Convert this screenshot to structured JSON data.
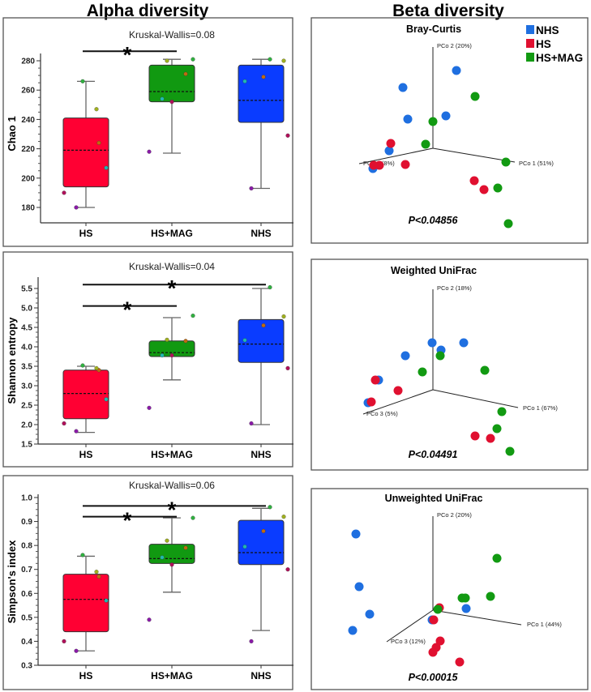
{
  "headers": {
    "alpha": "Alpha diversity",
    "beta": "Beta diversity"
  },
  "colors": {
    "HS": "#ff0033",
    "HS+MAG": "#119911",
    "NHS": "#0a3cff",
    "pcoa_NHS": "#1f6fe0",
    "pcoa_HS": "#e01030",
    "pcoa_HSMAG": "#129a12"
  },
  "chart_data": [
    {
      "type": "box",
      "ylabel": "Chao 1",
      "annotation": "Kruskal-Wallis=0.08",
      "categories": [
        "HS",
        "HS+MAG",
        "NHS"
      ],
      "yticks": [
        "180",
        "200",
        "220",
        "240",
        "260",
        "280"
      ],
      "ylim": [
        180,
        280
      ],
      "boxes": [
        {
          "q1": 194,
          "q3": 241,
          "median": 219,
          "min": 180,
          "max": 266,
          "points": [
            180,
            190,
            207,
            224,
            247,
            266
          ]
        },
        {
          "q1": 252,
          "q3": 277,
          "median": 259,
          "min": 217,
          "max": 281,
          "points": [
            218,
            252,
            254,
            271,
            280,
            281
          ]
        },
        {
          "q1": 238,
          "q3": 277,
          "median": 253,
          "min": 193,
          "max": 281,
          "points": [
            193,
            229,
            266,
            269,
            280,
            281
          ]
        }
      ],
      "significance": [
        {
          "from": 0,
          "to": 1,
          "level": 286.5,
          "mark": "*"
        }
      ]
    },
    {
      "type": "box",
      "ylabel": "Shannon entropy",
      "annotation": "Kruskal-Wallis=0.04",
      "categories": [
        "HS",
        "HS+MAG",
        "NHS"
      ],
      "yticks": [
        "1.5",
        "2.0",
        "2.5",
        "3.0",
        "3.5",
        "4.0",
        "4.5",
        "5.0",
        "5.5"
      ],
      "ylim": [
        1.5,
        5.5
      ],
      "boxes": [
        {
          "q1": 2.15,
          "q3": 3.4,
          "median": 2.8,
          "min": 1.8,
          "max": 3.5,
          "points": [
            1.83,
            2.03,
            2.65,
            3.4,
            3.45,
            3.52
          ]
        },
        {
          "q1": 3.75,
          "q3": 4.15,
          "median": 3.85,
          "min": 3.15,
          "max": 4.75,
          "points": [
            2.43,
            3.78,
            3.78,
            4.15,
            4.18,
            4.8
          ]
        },
        {
          "q1": 3.6,
          "q3": 4.7,
          "median": 4.07,
          "min": 2.0,
          "max": 5.5,
          "points": [
            2.03,
            3.45,
            4.17,
            4.55,
            4.78,
            5.53
          ]
        }
      ],
      "significance": [
        {
          "from": 0,
          "to": 2,
          "level": 5.6,
          "mark": "*"
        },
        {
          "from": 0,
          "to": 1,
          "level": 5.05,
          "mark": "*"
        }
      ]
    },
    {
      "type": "box",
      "ylabel": "Simpson's index",
      "annotation": "Kruskal-Wallis=0.06",
      "categories": [
        "HS",
        "HS+MAG",
        "NHS"
      ],
      "yticks": [
        "0.3",
        "0.4",
        "0.5",
        "0.6",
        "0.7",
        "0.8",
        "0.9",
        "1.0"
      ],
      "ylim": [
        0.3,
        1.0
      ],
      "boxes": [
        {
          "q1": 0.44,
          "q3": 0.68,
          "median": 0.575,
          "min": 0.36,
          "max": 0.755,
          "points": [
            0.36,
            0.4,
            0.57,
            0.67,
            0.69,
            0.76
          ]
        },
        {
          "q1": 0.725,
          "q3": 0.805,
          "median": 0.745,
          "min": 0.605,
          "max": 0.915,
          "points": [
            0.49,
            0.72,
            0.75,
            0.79,
            0.82,
            0.915
          ]
        },
        {
          "q1": 0.72,
          "q3": 0.905,
          "median": 0.77,
          "min": 0.445,
          "max": 0.955,
          "points": [
            0.4,
            0.7,
            0.795,
            0.86,
            0.92,
            0.96
          ]
        }
      ],
      "significance": [
        {
          "from": 0,
          "to": 2,
          "level": 0.965,
          "mark": "*"
        },
        {
          "from": 0,
          "to": 1,
          "level": 0.92,
          "mark": "*"
        }
      ]
    },
    {
      "type": "scatter3d",
      "title": "Bray-Curtis",
      "pvalue": "P<0.04856",
      "axes": {
        "pc1": "PCo 1 (51%)",
        "pc2": "PCo 2 (20%)",
        "pc3": "PCo 3 (8%)"
      },
      "legend": [
        "NHS",
        "HS",
        "HS+MAG"
      ],
      "series": [
        {
          "name": "NHS",
          "points": [
            [
              2.9,
              9.6
            ],
            [
              -3.7,
              7.5
            ],
            [
              -3.1,
              3.6
            ],
            [
              1.6,
              4.0
            ],
            [
              -5.4,
              -0.3
            ],
            [
              -7.4,
              -2.5
            ]
          ]
        },
        {
          "name": "HS",
          "points": [
            [
              -5.2,
              0.6
            ],
            [
              -7.3,
              -2.1
            ],
            [
              -6.6,
              -2.1
            ],
            [
              -3.4,
              -2.0
            ],
            [
              5.1,
              -4.0
            ],
            [
              6.3,
              -5.1
            ]
          ]
        },
        {
          "name": "HS+MAG",
          "points": [
            [
              5.2,
              6.4
            ],
            [
              0,
              3.3
            ],
            [
              -0.9,
              0.5
            ],
            [
              9.0,
              -1.7
            ],
            [
              8.0,
              -4.9
            ],
            [
              9.3,
              -9.3
            ]
          ]
        }
      ]
    },
    {
      "type": "scatter3d",
      "title": "Weighted UniFrac",
      "pvalue": "P<0.04491",
      "axes": {
        "pc1": "PCo 1 (67%)",
        "pc2": "PCo 2 (18%)",
        "pc3": "PCo 3 (5%)"
      },
      "series": [
        {
          "name": "NHS",
          "points": [
            [
              -0.1,
              5.8
            ],
            [
              1.0,
              4.9
            ],
            [
              3.8,
              5.8
            ],
            [
              -3.4,
              4.2
            ],
            [
              -6.7,
              1.2
            ],
            [
              -8.0,
              -1.6
            ]
          ]
        },
        {
          "name": "HS",
          "points": [
            [
              -7.1,
              1.2
            ],
            [
              -4.3,
              -0.1
            ],
            [
              -7.6,
              -1.5
            ],
            [
              5.2,
              -5.7
            ],
            [
              7.1,
              -6.0
            ]
          ]
        },
        {
          "name": "HS+MAG",
          "points": [
            [
              0.9,
              4.2
            ],
            [
              -1.3,
              2.2
            ],
            [
              6.4,
              2.4
            ],
            [
              8.5,
              -2.7
            ],
            [
              7.9,
              -4.8
            ],
            [
              9.5,
              -7.6
            ]
          ]
        }
      ]
    },
    {
      "type": "scatter3d",
      "title": "Unweighted UniFrac",
      "pvalue": "P<0.00015",
      "axes": {
        "pc1": "PCo 1 (44%)",
        "pc2": "PCo 2 (20%)",
        "pc3": "PCo 3 (12%)"
      },
      "series": [
        {
          "name": "NHS",
          "points": [
            [
              -9.5,
              9.4
            ],
            [
              -9.1,
              2.9
            ],
            [
              -7.8,
              -0.5
            ],
            [
              -9.9,
              -2.5
            ],
            [
              4.1,
              0.2
            ],
            [
              -0.1,
              -1.2
            ]
          ]
        },
        {
          "name": "HS",
          "points": [
            [
              0.8,
              0.3
            ],
            [
              0.1,
              -1.2
            ],
            [
              0.9,
              -3.8
            ],
            [
              0.4,
              -4.6
            ],
            [
              0,
              -5.2
            ],
            [
              3.3,
              -6.4
            ]
          ]
        },
        {
          "name": "HS+MAG",
          "points": [
            [
              7.9,
              6.4
            ],
            [
              3.6,
              1.5
            ],
            [
              4.0,
              1.5
            ],
            [
              7.1,
              1.7
            ],
            [
              0.6,
              0.1
            ]
          ]
        }
      ]
    }
  ]
}
